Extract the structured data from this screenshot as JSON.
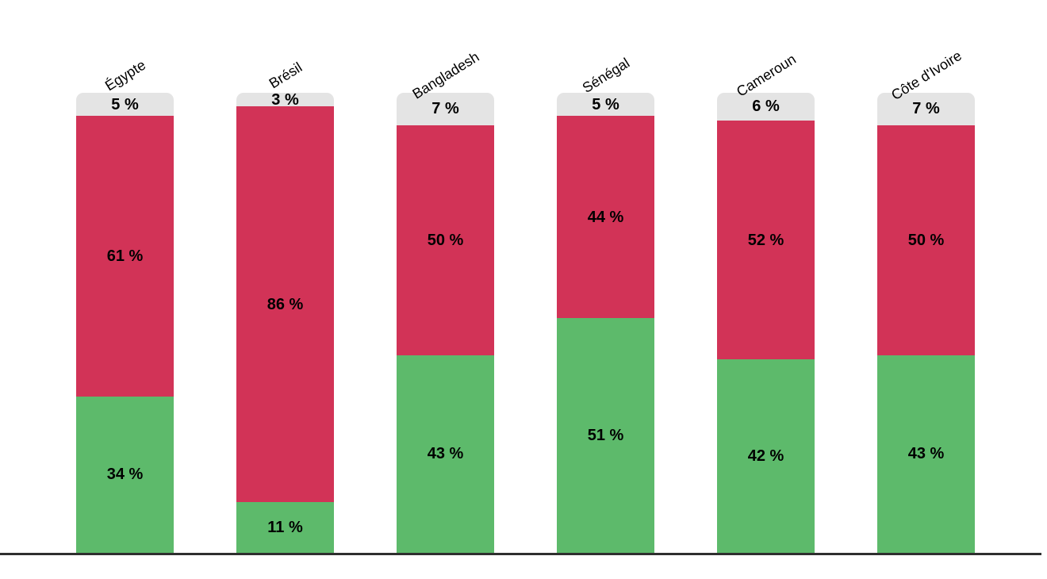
{
  "chart_data": {
    "type": "bar",
    "subtype": "stacked-column-100-percent",
    "orientation": "vertical",
    "title": "",
    "xlabel": "",
    "ylabel": "",
    "ylim": [
      0,
      100
    ],
    "grid": false,
    "legend": "none",
    "value_suffix": " %",
    "background_color": "#ffffff",
    "axis_line_color": "#2f2f2f",
    "label_text_color": "#000000",
    "categories": [
      "Égypte",
      "Brésil",
      "Bangladesh",
      "Sénégal",
      "Cameroun",
      "Côte d'Ivoire"
    ],
    "series": [
      {
        "name": "top-gray-segment",
        "color": "#e4e4e4",
        "values": [
          5,
          3,
          7,
          5,
          6,
          7
        ]
      },
      {
        "name": "middle-red-segment",
        "color": "#d23357",
        "values": [
          61,
          86,
          50,
          44,
          52,
          50
        ]
      },
      {
        "name": "bottom-green-segment",
        "color": "#5dba6b",
        "values": [
          34,
          11,
          43,
          51,
          42,
          43
        ]
      }
    ],
    "segment_labels": {
      "top-gray-segment": [
        "5 %",
        "3 %",
        "7 %",
        "5 %",
        "6 %",
        "7 %"
      ],
      "middle-red-segment": [
        "61 %",
        "86 %",
        "50 %",
        "44 %",
        "52 %",
        "50 %"
      ],
      "bottom-green-segment": [
        "34 %",
        "11 %",
        "43 %",
        "51 %",
        "42 %",
        "43 %"
      ]
    }
  }
}
